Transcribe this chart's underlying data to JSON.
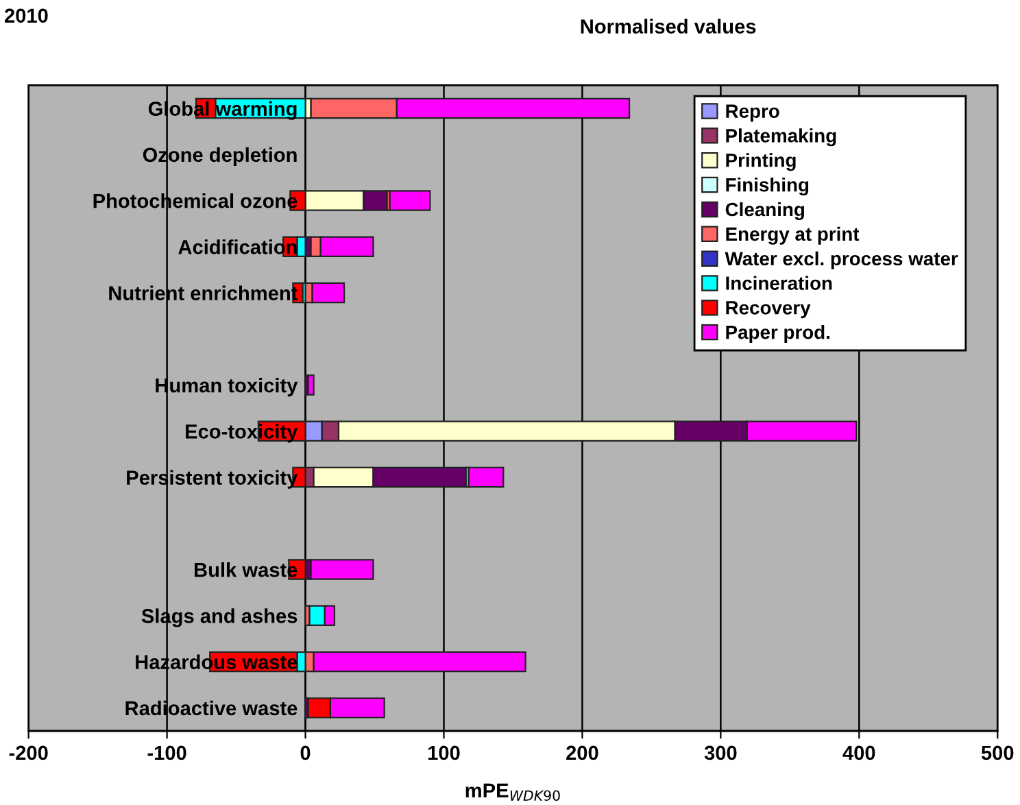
{
  "chart_data": {
    "type": "bar",
    "orientation": "horizontal",
    "stacked": true,
    "title": "Normalised values",
    "xlabel": "mPE$_{WDK90}$",
    "annotations": [
      "2010"
    ],
    "categories": [
      "Global warming",
      "Ozone depletion",
      "Photochemical ozone",
      "Acidification",
      "Nutrient enrichment",
      null,
      "Human toxicity",
      "Eco-toxicity",
      "Persistent toxicity",
      null,
      "Bulk waste",
      "Slags and ashes",
      "Hazardous waste",
      "Radioactive waste"
    ],
    "series": [
      {
        "name": "Repro",
        "color": "#9999ff",
        "values": [
          0,
          0,
          0,
          0,
          0,
          null,
          0,
          12,
          0,
          null,
          0,
          0,
          0,
          0
        ]
      },
      {
        "name": "Platemaking",
        "color": "#993366",
        "values": [
          null,
          0,
          0,
          0,
          0,
          null,
          0,
          12,
          6,
          null,
          0,
          0,
          0,
          0
        ]
      },
      {
        "name": "Printing",
        "color": "#ffffcc",
        "values": [
          4,
          0,
          42,
          0,
          0,
          null,
          0,
          243,
          43,
          null,
          0,
          0,
          0,
          0
        ]
      },
      {
        "name": "Finishing",
        "color": "#ccffff",
        "values": [
          0,
          0,
          0,
          0,
          0,
          null,
          0,
          null,
          0,
          null,
          0,
          0,
          0,
          0
        ]
      },
      {
        "name": "Cleaning",
        "color": "#660066",
        "values": [
          0,
          0,
          17,
          4,
          0,
          null,
          2,
          52,
          67,
          null,
          4,
          0,
          0,
          2
        ]
      },
      {
        "name": "Energy at print",
        "color": "#ff6666",
        "values": [
          62,
          0,
          2,
          7,
          5,
          null,
          0,
          0,
          0,
          null,
          0,
          3,
          6,
          0
        ]
      },
      {
        "name": "Water excl. process water",
        "color": "#3333cc",
        "values": [
          0,
          0,
          0,
          0,
          0,
          null,
          0,
          0,
          0,
          null,
          0,
          0,
          0,
          0
        ]
      },
      {
        "name": "Incineration",
        "color": "#00ffff",
        "values": [
          -65,
          0,
          0,
          -6,
          -2,
          null,
          0,
          0,
          2,
          null,
          0,
          11,
          -6,
          0
        ]
      },
      {
        "name": "Recovery",
        "color": "#ff0000",
        "values": [
          -14,
          0,
          -11,
          -10,
          -7,
          null,
          0,
          -34,
          -9,
          null,
          -12,
          0,
          -63,
          16
        ]
      },
      {
        "name": "Paper prod.",
        "color": "#ff00ff",
        "values": [
          168,
          0,
          29,
          38,
          23,
          null,
          4,
          79,
          25,
          null,
          45,
          7,
          153,
          39
        ]
      }
    ],
    "xlim": [
      -200,
      500
    ],
    "xticks": [
      -200,
      -100,
      0,
      100,
      200,
      300,
      400,
      500
    ],
    "grid": "x",
    "legend": "top right"
  }
}
